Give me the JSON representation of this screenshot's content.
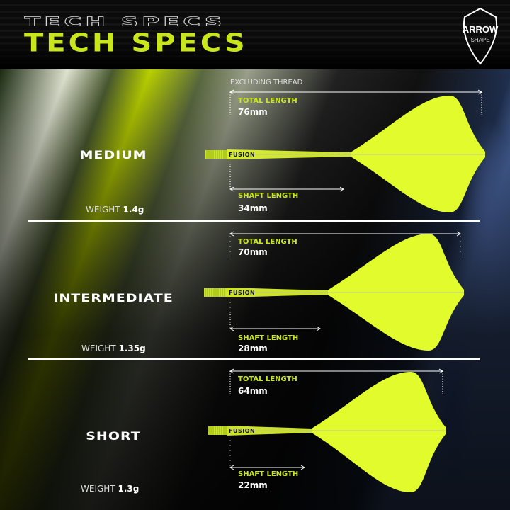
{
  "header": {
    "title": "TECH SPECS",
    "badge": {
      "line1": "ARROW",
      "line2": "SHAPE"
    }
  },
  "note": "EXCLUDING THREAD",
  "colors": {
    "accent": "#c8e619",
    "flight": "#e2fb2c"
  },
  "brand": "FUSION",
  "sections": [
    {
      "size": "MEDIUM",
      "weight_label": "WEIGHT",
      "weight": "1.4g",
      "total_label": "TOTAL LENGTH",
      "total": "76mm",
      "shaft_label": "SHAFT LENGTH",
      "shaft": "34mm"
    },
    {
      "size": "INTERMEDIATE",
      "weight_label": "WEIGHT",
      "weight": "1.35g",
      "total_label": "TOTAL LENGTH",
      "total": "70mm",
      "shaft_label": "SHAFT LENGTH",
      "shaft": "28mm"
    },
    {
      "size": "SHORT",
      "weight_label": "WEIGHT",
      "weight": "1.3g",
      "total_label": "TOTAL LENGTH",
      "total": "64mm",
      "shaft_label": "SHAFT LENGTH",
      "shaft": "22mm"
    }
  ]
}
